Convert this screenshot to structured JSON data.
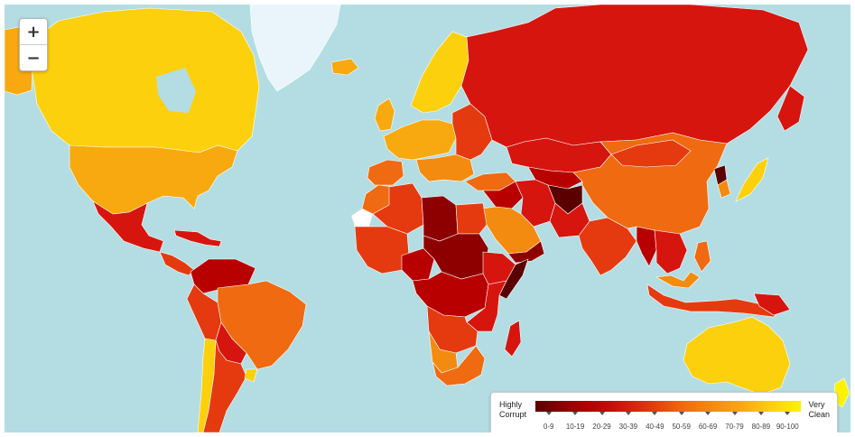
{
  "map": {
    "water_color": "#b3dde3",
    "scale_colors": [
      "#5a0000",
      "#8e0000",
      "#b90000",
      "#d6150f",
      "#e53a0f",
      "#ef6a10",
      "#f38b10",
      "#f7a90f",
      "#fcd00c",
      "#fff200"
    ]
  },
  "zoom": {
    "zoom_in_label": "+",
    "zoom_out_label": "−"
  },
  "legend": {
    "left_label_line1": "Highly",
    "left_label_line2": "Corrupt",
    "right_label_line1": "Very",
    "right_label_line2": "Clean",
    "ranges": [
      "0-9",
      "10-19",
      "20-29",
      "30-39",
      "40-49",
      "50-59",
      "60-69",
      "70-79",
      "80-89",
      "90-100"
    ]
  }
}
